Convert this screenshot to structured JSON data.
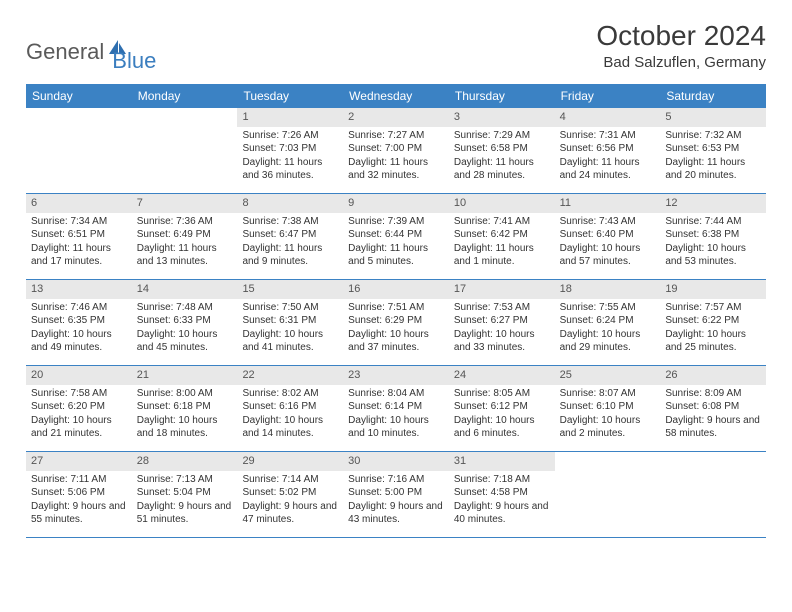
{
  "branding": {
    "word1": "General",
    "word2": "Blue",
    "icon_color": "#2e6fb0"
  },
  "title": "October 2024",
  "location": "Bad Salzuflen, Germany",
  "colors": {
    "header_bg": "#3b82c4",
    "header_fg": "#ffffff",
    "daynum_bg": "#e8e8e8",
    "row_border": "#3b82c4",
    "text": "#333333"
  },
  "weekdays": [
    "Sunday",
    "Monday",
    "Tuesday",
    "Wednesday",
    "Thursday",
    "Friday",
    "Saturday"
  ],
  "weeks": [
    [
      null,
      null,
      {
        "n": "1",
        "sr": "7:26 AM",
        "ss": "7:03 PM",
        "dl": "11 hours and 36 minutes."
      },
      {
        "n": "2",
        "sr": "7:27 AM",
        "ss": "7:00 PM",
        "dl": "11 hours and 32 minutes."
      },
      {
        "n": "3",
        "sr": "7:29 AM",
        "ss": "6:58 PM",
        "dl": "11 hours and 28 minutes."
      },
      {
        "n": "4",
        "sr": "7:31 AM",
        "ss": "6:56 PM",
        "dl": "11 hours and 24 minutes."
      },
      {
        "n": "5",
        "sr": "7:32 AM",
        "ss": "6:53 PM",
        "dl": "11 hours and 20 minutes."
      }
    ],
    [
      {
        "n": "6",
        "sr": "7:34 AM",
        "ss": "6:51 PM",
        "dl": "11 hours and 17 minutes."
      },
      {
        "n": "7",
        "sr": "7:36 AM",
        "ss": "6:49 PM",
        "dl": "11 hours and 13 minutes."
      },
      {
        "n": "8",
        "sr": "7:38 AM",
        "ss": "6:47 PM",
        "dl": "11 hours and 9 minutes."
      },
      {
        "n": "9",
        "sr": "7:39 AM",
        "ss": "6:44 PM",
        "dl": "11 hours and 5 minutes."
      },
      {
        "n": "10",
        "sr": "7:41 AM",
        "ss": "6:42 PM",
        "dl": "11 hours and 1 minute."
      },
      {
        "n": "11",
        "sr": "7:43 AM",
        "ss": "6:40 PM",
        "dl": "10 hours and 57 minutes."
      },
      {
        "n": "12",
        "sr": "7:44 AM",
        "ss": "6:38 PM",
        "dl": "10 hours and 53 minutes."
      }
    ],
    [
      {
        "n": "13",
        "sr": "7:46 AM",
        "ss": "6:35 PM",
        "dl": "10 hours and 49 minutes."
      },
      {
        "n": "14",
        "sr": "7:48 AM",
        "ss": "6:33 PM",
        "dl": "10 hours and 45 minutes."
      },
      {
        "n": "15",
        "sr": "7:50 AM",
        "ss": "6:31 PM",
        "dl": "10 hours and 41 minutes."
      },
      {
        "n": "16",
        "sr": "7:51 AM",
        "ss": "6:29 PM",
        "dl": "10 hours and 37 minutes."
      },
      {
        "n": "17",
        "sr": "7:53 AM",
        "ss": "6:27 PM",
        "dl": "10 hours and 33 minutes."
      },
      {
        "n": "18",
        "sr": "7:55 AM",
        "ss": "6:24 PM",
        "dl": "10 hours and 29 minutes."
      },
      {
        "n": "19",
        "sr": "7:57 AM",
        "ss": "6:22 PM",
        "dl": "10 hours and 25 minutes."
      }
    ],
    [
      {
        "n": "20",
        "sr": "7:58 AM",
        "ss": "6:20 PM",
        "dl": "10 hours and 21 minutes."
      },
      {
        "n": "21",
        "sr": "8:00 AM",
        "ss": "6:18 PM",
        "dl": "10 hours and 18 minutes."
      },
      {
        "n": "22",
        "sr": "8:02 AM",
        "ss": "6:16 PM",
        "dl": "10 hours and 14 minutes."
      },
      {
        "n": "23",
        "sr": "8:04 AM",
        "ss": "6:14 PM",
        "dl": "10 hours and 10 minutes."
      },
      {
        "n": "24",
        "sr": "8:05 AM",
        "ss": "6:12 PM",
        "dl": "10 hours and 6 minutes."
      },
      {
        "n": "25",
        "sr": "8:07 AM",
        "ss": "6:10 PM",
        "dl": "10 hours and 2 minutes."
      },
      {
        "n": "26",
        "sr": "8:09 AM",
        "ss": "6:08 PM",
        "dl": "9 hours and 58 minutes."
      }
    ],
    [
      {
        "n": "27",
        "sr": "7:11 AM",
        "ss": "5:06 PM",
        "dl": "9 hours and 55 minutes."
      },
      {
        "n": "28",
        "sr": "7:13 AM",
        "ss": "5:04 PM",
        "dl": "9 hours and 51 minutes."
      },
      {
        "n": "29",
        "sr": "7:14 AM",
        "ss": "5:02 PM",
        "dl": "9 hours and 47 minutes."
      },
      {
        "n": "30",
        "sr": "7:16 AM",
        "ss": "5:00 PM",
        "dl": "9 hours and 43 minutes."
      },
      {
        "n": "31",
        "sr": "7:18 AM",
        "ss": "4:58 PM",
        "dl": "9 hours and 40 minutes."
      },
      null,
      null
    ]
  ],
  "labels": {
    "sunrise": "Sunrise:",
    "sunset": "Sunset:",
    "daylight": "Daylight:"
  }
}
